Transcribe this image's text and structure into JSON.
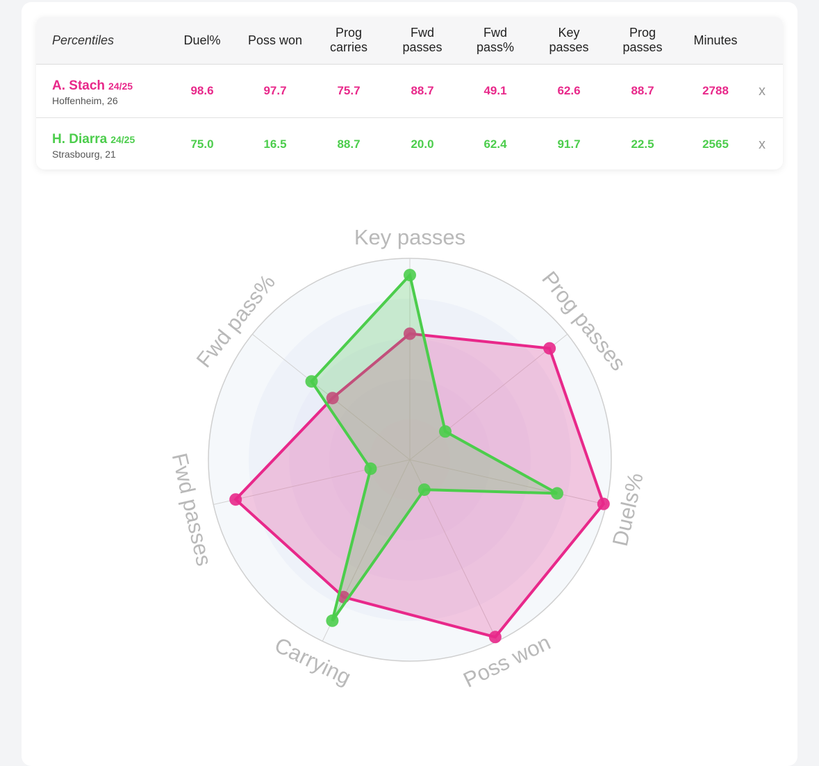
{
  "table": {
    "header_title": "Percentiles",
    "columns": [
      "Duel%",
      "Poss won",
      "Prog carries",
      "Fwd passes",
      "Fwd pass%",
      "Key passes",
      "Prog passes",
      "Minutes"
    ],
    "remove_label": "x",
    "players": [
      {
        "name": "A. Stach",
        "season": "24/25",
        "team": "Hoffenheim, 26",
        "color": "#e8288a",
        "values": [
          "98.6",
          "97.7",
          "75.7",
          "88.7",
          "49.1",
          "62.6",
          "88.7",
          "2788"
        ]
      },
      {
        "name": "H. Diarra",
        "season": "24/25",
        "team": "Strasbourg, 21",
        "color": "#4ccd4c",
        "values": [
          "75.0",
          "16.5",
          "88.7",
          "20.0",
          "62.4",
          "91.7",
          "22.5",
          "2565"
        ]
      }
    ]
  },
  "chart_data": {
    "type": "radar",
    "axes": [
      "Key passes",
      "Prog passes",
      "Duels%",
      "Poss won",
      "Carrying",
      "Fwd passes",
      "Fwd pass%"
    ],
    "range": [
      0,
      100
    ],
    "series": [
      {
        "name": "A. Stach",
        "color": "#e8288a",
        "values": [
          62.6,
          88.7,
          98.6,
          97.7,
          75.7,
          88.7,
          49.1
        ]
      },
      {
        "name": "H. Diarra",
        "color": "#4ccd4c",
        "values": [
          91.7,
          22.5,
          75.0,
          16.5,
          88.7,
          20.0,
          62.4
        ]
      }
    ]
  }
}
